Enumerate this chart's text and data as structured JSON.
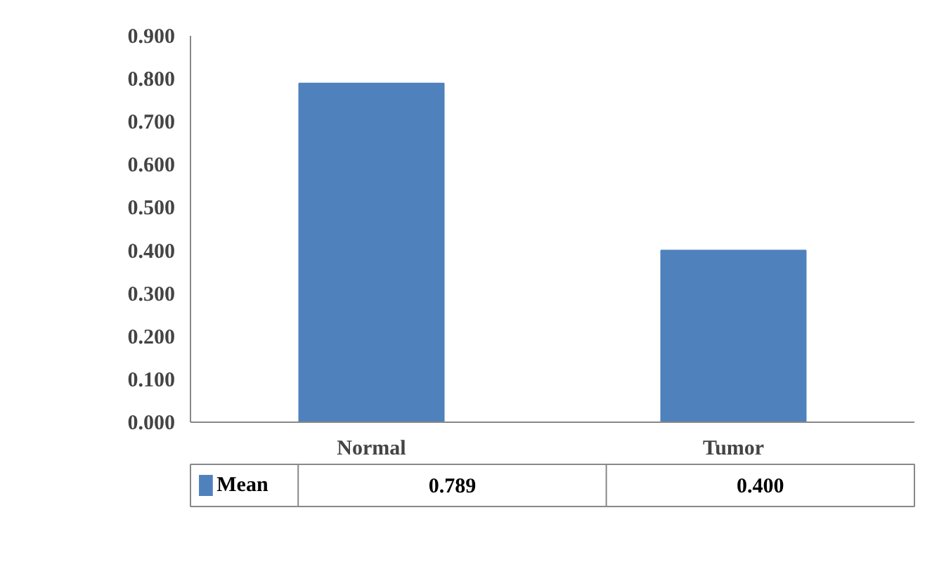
{
  "chart_data": {
    "type": "bar",
    "categories": [
      "Normal",
      "Tumor"
    ],
    "series": [
      {
        "name": "Mean",
        "color": "#4f81bd",
        "values": [
          0.789,
          0.4
        ],
        "value_labels": [
          "0.789",
          "0.400"
        ]
      }
    ],
    "ylim": [
      0,
      0.9
    ],
    "yticks": [
      {
        "value": 0,
        "label": "0.000"
      },
      {
        "value": 0.1,
        "label": "0.100"
      },
      {
        "value": 0.2,
        "label": "0.200"
      },
      {
        "value": 0.3,
        "label": "0.300"
      },
      {
        "value": 0.4,
        "label": "0.400"
      },
      {
        "value": 0.5,
        "label": "0.500"
      },
      {
        "value": 0.6,
        "label": "0.600"
      },
      {
        "value": 0.7,
        "label": "0.700"
      },
      {
        "value": 0.8,
        "label": "0.800"
      },
      {
        "value": 0.9,
        "label": "0.900"
      }
    ],
    "grid": false,
    "legend": "bottom"
  }
}
